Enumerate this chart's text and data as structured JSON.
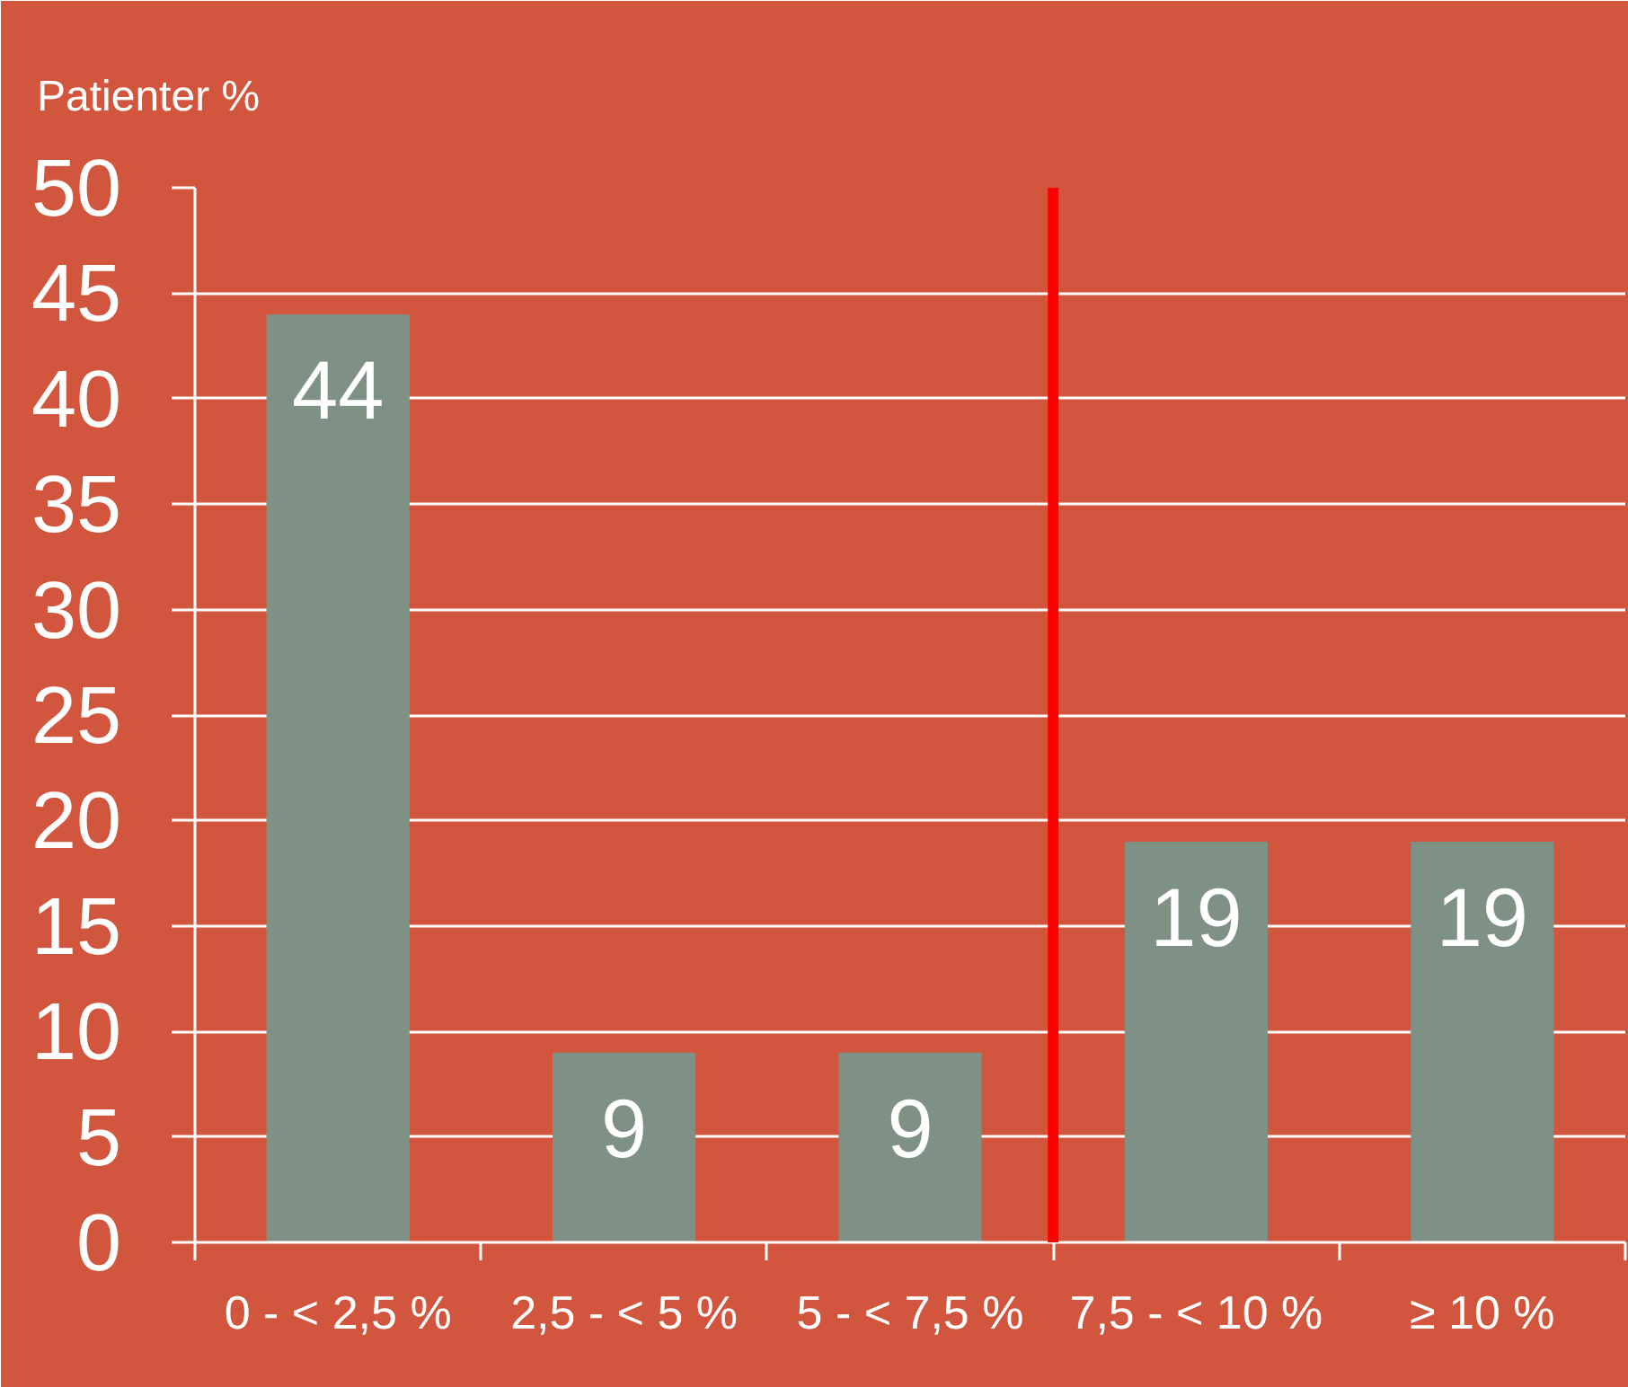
{
  "chart_data": {
    "type": "bar",
    "ylabel": "Patienter %",
    "categories": [
      "0 - < 2,5 %",
      "2,5 - < 5 %",
      "5 - < 7,5 %",
      "7,5 - < 10 %",
      "≥ 10 %"
    ],
    "values": [
      44,
      9,
      9,
      19,
      19
    ],
    "color": "#7e9184",
    "ylim": [
      0,
      50
    ],
    "yticks": [
      0,
      5,
      10,
      15,
      20,
      25,
      30,
      35,
      40,
      45,
      50
    ],
    "grid": "y",
    "data_labels": true,
    "ref_lines": [
      {
        "axis": "x",
        "value": "7,5 - < 10 %",
        "color": "#ff0000"
      }
    ]
  }
}
